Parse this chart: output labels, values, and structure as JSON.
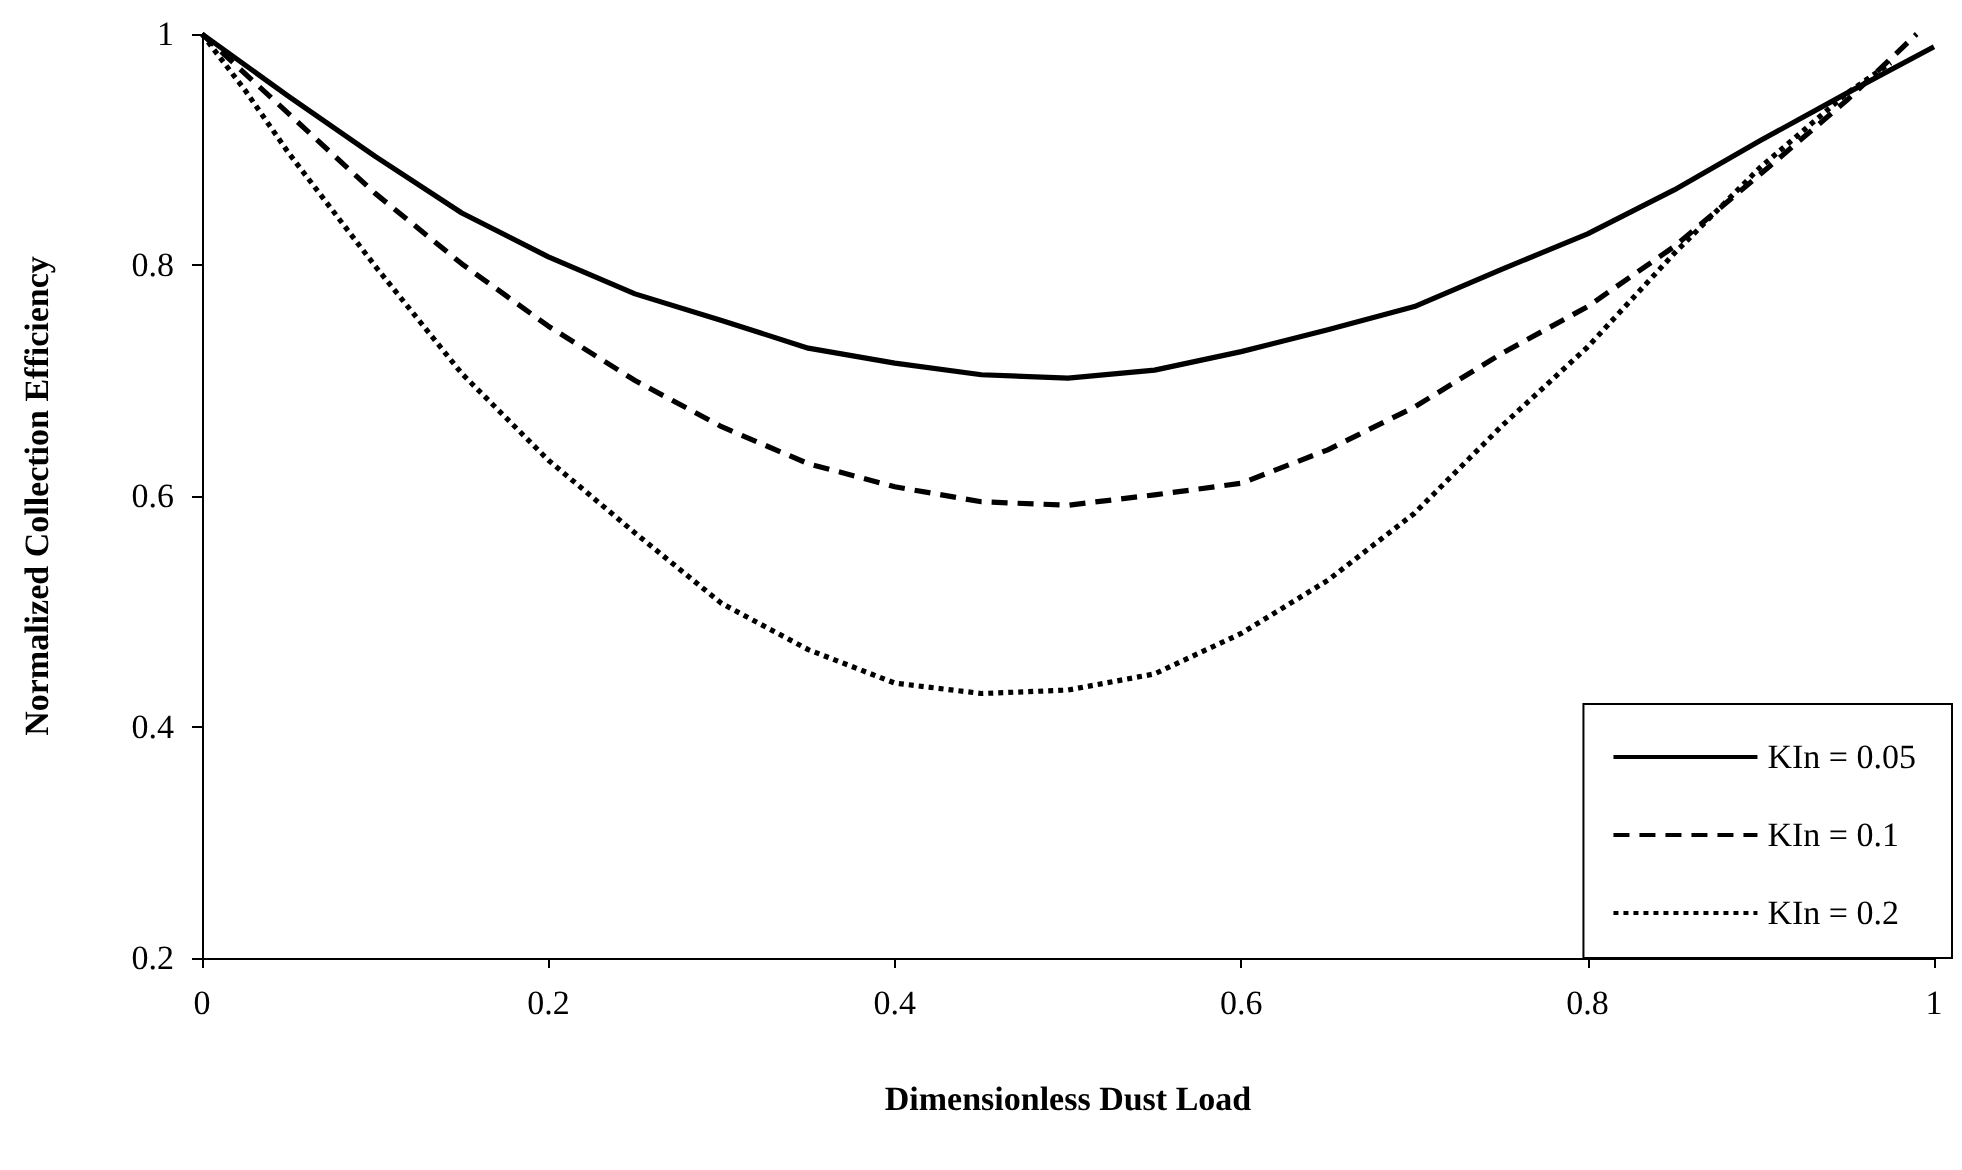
{
  "chart_data": {
    "type": "line",
    "xlabel": "Dimensionless Dust Load",
    "ylabel": "Normalized Collection Efficiency",
    "xlim": [
      0,
      1
    ],
    "xticks": [
      0,
      0.2,
      0.4,
      0.6,
      0.8,
      1
    ],
    "ylim": [
      0.2,
      1
    ],
    "yticks": [
      0.2,
      0.4,
      0.6,
      0.8,
      1
    ],
    "grid": false,
    "legend": "bottom right",
    "marker": "none",
    "series": [
      {
        "name": "KIn = 0.05",
        "color": "#000000",
        "line_style": "solid",
        "x": [
          0,
          0.05,
          0.1,
          0.15,
          0.2,
          0.25,
          0.3,
          0.35,
          0.4,
          0.45,
          0.5,
          0.55,
          0.6,
          0.65,
          0.7,
          0.75,
          0.8,
          0.85,
          0.9,
          0.95,
          1
        ],
        "values": [
          1,
          0.946,
          0.894,
          0.845,
          0.807,
          0.775,
          0.752,
          0.728,
          0.715,
          0.705,
          0.702,
          0.709,
          0.725,
          0.744,
          0.764,
          0.796,
          0.827,
          0.865,
          0.908,
          0.949,
          0.989
        ]
      },
      {
        "name": "KIn = 0.1",
        "color": "#000000",
        "line_style": "dashed",
        "x": [
          0,
          0.05,
          0.1,
          0.15,
          0.2,
          0.25,
          0.3,
          0.35,
          0.4,
          0.45,
          0.5,
          0.55,
          0.6,
          0.65,
          0.7,
          0.75,
          0.8,
          0.85,
          0.9,
          0.95,
          0.99
        ],
        "values": [
          1,
          0.931,
          0.862,
          0.801,
          0.747,
          0.7,
          0.66,
          0.628,
          0.608,
          0.595,
          0.592,
          0.601,
          0.611,
          0.64,
          0.677,
          0.723,
          0.764,
          0.816,
          0.879,
          0.943,
          1
        ]
      },
      {
        "name": "KIn = 0.2",
        "color": "#000000",
        "line_style": "dotted",
        "x": [
          0,
          0.025,
          0.05,
          0.1,
          0.15,
          0.2,
          0.25,
          0.3,
          0.35,
          0.4,
          0.45,
          0.5,
          0.55,
          0.6,
          0.65,
          0.7,
          0.75,
          0.8,
          0.85,
          0.9,
          0.95,
          0.975
        ],
        "values": [
          1,
          0.951,
          0.897,
          0.799,
          0.706,
          0.631,
          0.568,
          0.507,
          0.467,
          0.438,
          0.429,
          0.432,
          0.446,
          0.481,
          0.527,
          0.585,
          0.66,
          0.729,
          0.81,
          0.885,
          0.949,
          0.975
        ]
      }
    ]
  }
}
